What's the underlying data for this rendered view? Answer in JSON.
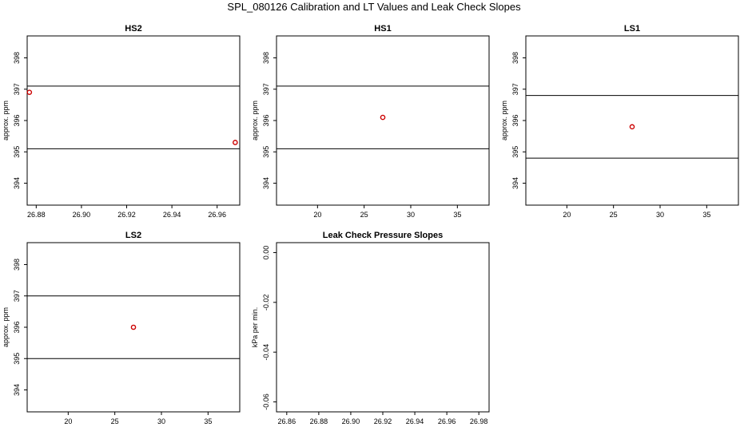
{
  "figure": {
    "title": "SPL_080126  Calibration and LT Values and Leak Check Slopes"
  },
  "style": {
    "point_color": "#cc0000",
    "line_color": "#000000",
    "background": "#ffffff"
  },
  "chart_data": [
    {
      "type": "scatter",
      "title": "HS2",
      "xlabel": "",
      "ylabel": "approx. ppm",
      "xlim": [
        26.876,
        26.97
      ],
      "ylim": [
        393.3,
        398.7
      ],
      "xticks": [
        26.88,
        26.9,
        26.92,
        26.94,
        26.96
      ],
      "xtick_labels": [
        "26.88",
        "26.90",
        "26.92",
        "26.94",
        "26.96"
      ],
      "yticks": [
        394,
        395,
        396,
        397,
        398
      ],
      "ytick_labels": [
        "394",
        "395",
        "396",
        "397",
        "398"
      ],
      "hlines": [
        395.1,
        397.1
      ],
      "points": [
        {
          "x": 26.877,
          "y": 396.9
        },
        {
          "x": 26.968,
          "y": 395.3
        }
      ]
    },
    {
      "type": "scatter",
      "title": "HS1",
      "xlabel": "",
      "ylabel": "approx. ppm",
      "xlim": [
        15.6,
        38.4
      ],
      "ylim": [
        393.3,
        398.7
      ],
      "xticks": [
        20,
        25,
        30,
        35
      ],
      "xtick_labels": [
        "20",
        "25",
        "30",
        "35"
      ],
      "yticks": [
        394,
        395,
        396,
        397,
        398
      ],
      "ytick_labels": [
        "394",
        "395",
        "396",
        "397",
        "398"
      ],
      "hlines": [
        395.1,
        397.1
      ],
      "points": [
        {
          "x": 27.0,
          "y": 396.1
        }
      ]
    },
    {
      "type": "scatter",
      "title": "LS1",
      "xlabel": "",
      "ylabel": "approx. ppm",
      "xlim": [
        15.6,
        38.4
      ],
      "ylim": [
        393.3,
        398.7
      ],
      "xticks": [
        20,
        25,
        30,
        35
      ],
      "xtick_labels": [
        "20",
        "25",
        "30",
        "35"
      ],
      "yticks": [
        394,
        395,
        396,
        397,
        398
      ],
      "ytick_labels": [
        "394",
        "395",
        "396",
        "397",
        "398"
      ],
      "hlines": [
        394.8,
        396.8
      ],
      "points": [
        {
          "x": 27.0,
          "y": 395.8
        }
      ]
    },
    {
      "type": "scatter",
      "title": "LS2",
      "xlabel": "",
      "ylabel": "approx. ppm",
      "xlim": [
        15.6,
        38.4
      ],
      "ylim": [
        393.3,
        398.7
      ],
      "xticks": [
        20,
        25,
        30,
        35
      ],
      "xtick_labels": [
        "20",
        "25",
        "30",
        "35"
      ],
      "yticks": [
        394,
        395,
        396,
        397,
        398
      ],
      "ytick_labels": [
        "394",
        "395",
        "396",
        "397",
        "398"
      ],
      "hlines": [
        395.0,
        397.0
      ],
      "points": [
        {
          "x": 27.0,
          "y": 396.0
        }
      ]
    },
    {
      "type": "scatter",
      "title": "Leak Check Pressure Slopes",
      "xlabel": "",
      "ylabel": "kPa per min.",
      "xlim": [
        26.8536,
        26.9864
      ],
      "ylim": [
        -0.064,
        0.004
      ],
      "xticks": [
        26.86,
        26.88,
        26.9,
        26.92,
        26.94,
        26.96,
        26.98
      ],
      "xtick_labels": [
        "26.86",
        "26.88",
        "26.90",
        "26.92",
        "26.94",
        "26.96",
        "26.98"
      ],
      "yticks": [
        0.0,
        -0.02,
        -0.04,
        -0.06
      ],
      "ytick_labels": [
        "0.00",
        "-0.02",
        "-0.04",
        "-0.06"
      ],
      "hlines": [],
      "points": []
    }
  ]
}
